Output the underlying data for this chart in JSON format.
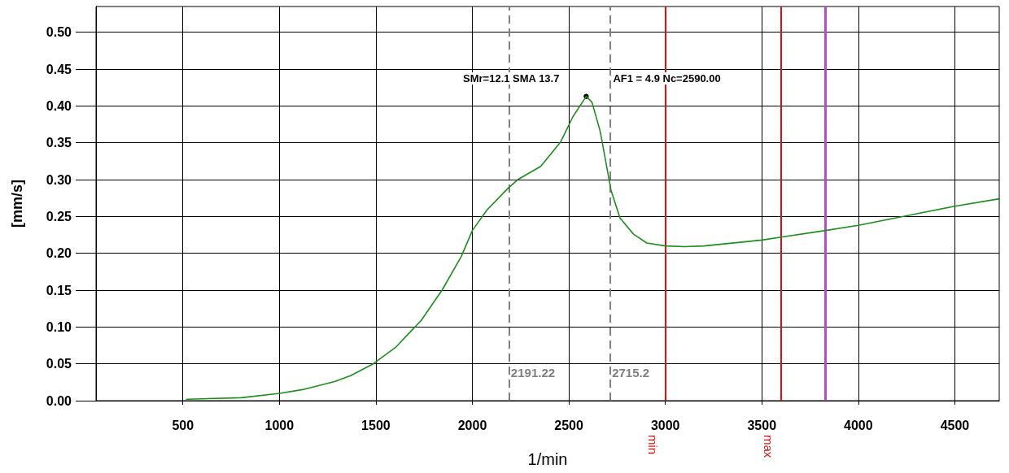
{
  "chart_data": {
    "type": "line",
    "xlabel": "1/min",
    "ylabel": "[mm/s]",
    "xlim": [
      50,
      4730
    ],
    "xticks": [
      500,
      1000,
      1500,
      2000,
      2500,
      3000,
      3500,
      4000,
      4500
    ],
    "ylim": [
      0,
      0.535
    ],
    "yticks": [
      {
        "value": 0,
        "label": "0.00"
      },
      {
        "value": 0.05,
        "label": "0.05"
      },
      {
        "value": 0.1,
        "label": "0.10"
      },
      {
        "value": 0.15,
        "label": "0.15"
      },
      {
        "value": 0.2,
        "label": "0.20"
      },
      {
        "value": 0.25,
        "label": "0.25"
      },
      {
        "value": 0.3,
        "label": "0.30"
      },
      {
        "value": 0.35,
        "label": "0.35"
      },
      {
        "value": 0.4,
        "label": "0.40"
      },
      {
        "value": 0.45,
        "label": "0.45"
      },
      {
        "value": 0.5,
        "label": "0.50"
      }
    ],
    "grid": true,
    "marker": "none",
    "line_style": "solid",
    "series": [
      {
        "color": "#1e8c1e",
        "x": [
          519,
          802,
          1002,
          1120,
          1286,
          1369,
          1486,
          1601,
          1735,
          1843,
          1943,
          2000,
          2076,
          2184,
          2235,
          2354,
          2457,
          2520,
          2590,
          2620,
          2663,
          2718,
          2765,
          2835,
          2904,
          3000,
          3100,
          3200,
          3500,
          3600,
          3830,
          4000,
          4250,
          4500,
          4730
        ],
        "values": [
          0.002,
          0.004,
          0.01,
          0.015,
          0.026,
          0.034,
          0.05,
          0.072,
          0.109,
          0.15,
          0.196,
          0.231,
          0.259,
          0.288,
          0.3,
          0.318,
          0.351,
          0.385,
          0.413,
          0.405,
          0.365,
          0.286,
          0.248,
          0.226,
          0.214,
          0.21,
          0.209,
          0.21,
          0.218,
          0.222,
          0.231,
          0.238,
          0.251,
          0.264,
          0.274
        ]
      }
    ],
    "annotations": [
      {
        "text": "SMr=12.1 SMA 13.7",
        "x": 2590,
        "y": 0.413
      },
      {
        "text": "AF1 = 4.9 Nc=2590.00",
        "x": 2590,
        "y": 0.413
      }
    ],
    "ref_lines": [
      {
        "axis": "x",
        "value": 2191.22,
        "label": "2191.22",
        "color": "#808080",
        "line_style": "dashed"
      },
      {
        "axis": "x",
        "value": 2715.2,
        "label": "2715.2",
        "color": "#808080",
        "line_style": "dashed"
      },
      {
        "axis": "x",
        "value": 3000,
        "label": "min",
        "color": "#e01010",
        "line_style": "solid"
      },
      {
        "axis": "x",
        "value": 3600,
        "label": "max",
        "color": "#e01010",
        "line_style": "solid"
      },
      {
        "axis": "x",
        "value": 3830,
        "color": "#b050c0",
        "line_style": "solid"
      }
    ]
  }
}
